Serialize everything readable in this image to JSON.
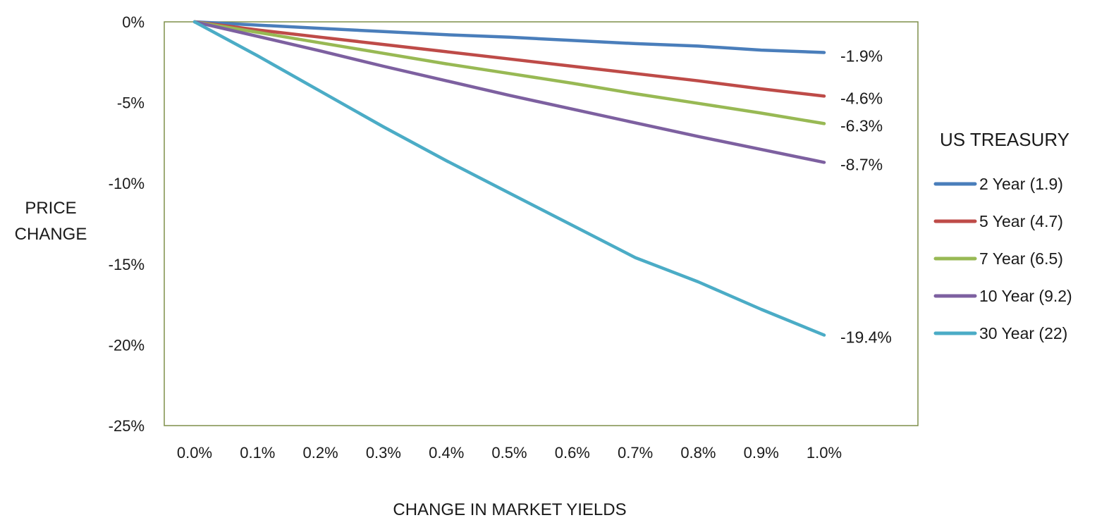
{
  "chart_data": {
    "type": "line",
    "x": [
      0.0,
      0.1,
      0.2,
      0.3,
      0.4,
      0.5,
      0.6,
      0.7,
      0.8,
      0.9,
      1.0
    ],
    "x_tick_labels": [
      "0.0%",
      "0.1%",
      "0.2%",
      "0.3%",
      "0.4%",
      "0.5%",
      "0.6%",
      "0.7%",
      "0.8%",
      "0.9%",
      "1.0%"
    ],
    "y_tick_values": [
      0,
      -5,
      -10,
      -15,
      -20,
      -25
    ],
    "y_tick_labels": [
      "0%",
      "-5%",
      "-10%",
      "-15%",
      "-20%",
      "-25%"
    ],
    "ylim": [
      -25,
      0
    ],
    "xlim": [
      0.0,
      1.0
    ],
    "xlabel": "CHANGE IN MARKET YIELDS",
    "ylabel_lines": [
      "PRICE",
      "CHANGE"
    ],
    "grid": false,
    "legend": {
      "title": "US TREASURY",
      "placement": "right"
    },
    "series": [
      {
        "name": "2 Year (1.9)",
        "color": "#4a7ebb",
        "values": [
          0,
          -0.2,
          -0.4,
          -0.6,
          -0.8,
          -0.95,
          -1.15,
          -1.35,
          -1.5,
          -1.75,
          -1.9
        ],
        "end_label": "-1.9%"
      },
      {
        "name": "5 Year (4.7)",
        "color": "#be4b48",
        "values": [
          0,
          -0.5,
          -0.95,
          -1.4,
          -1.85,
          -2.3,
          -2.75,
          -3.2,
          -3.65,
          -4.15,
          -4.6
        ],
        "end_label": "-4.6%"
      },
      {
        "name": "7 Year (6.5)",
        "color": "#98b954",
        "values": [
          0,
          -0.65,
          -1.3,
          -1.95,
          -2.6,
          -3.2,
          -3.8,
          -4.45,
          -5.05,
          -5.65,
          -6.3
        ],
        "end_label": "-6.3%"
      },
      {
        "name": "10 Year (9.2)",
        "color": "#7d60a0",
        "values": [
          0,
          -0.9,
          -1.8,
          -2.75,
          -3.65,
          -4.55,
          -5.4,
          -6.25,
          -7.1,
          -7.9,
          -8.7
        ],
        "end_label": "-8.7%"
      },
      {
        "name": "30 Year (22)",
        "color": "#4bacc6",
        "values": [
          0,
          -2.1,
          -4.3,
          -6.5,
          -8.6,
          -10.6,
          -12.6,
          -14.6,
          -16.1,
          -17.8,
          -19.4
        ],
        "end_label": "-19.4%"
      }
    ]
  }
}
